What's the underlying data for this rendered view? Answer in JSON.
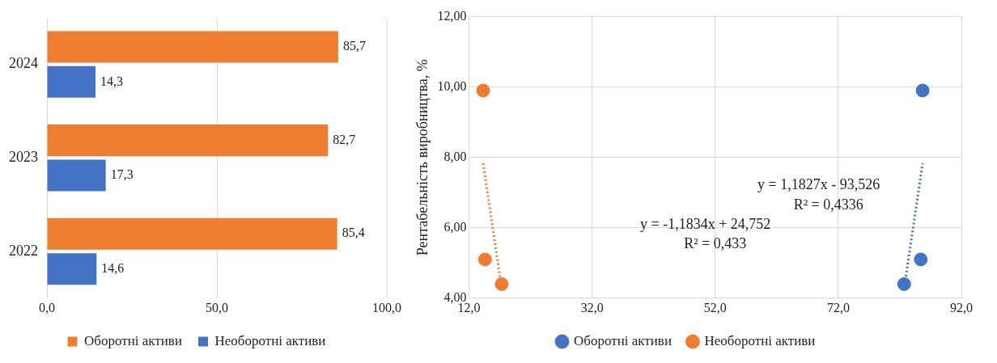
{
  "chart_data": [
    {
      "type": "bar",
      "orientation": "horizontal",
      "categories": [
        "2024",
        "2023",
        "2022"
      ],
      "series": [
        {
          "name": "Оборотні активи",
          "color": "#ed7d31",
          "values": [
            85.7,
            82.7,
            85.4
          ],
          "value_labels": [
            "85,7",
            "82,7",
            "85,4"
          ]
        },
        {
          "name": "Необоротні активи",
          "color": "#4472c4",
          "values": [
            14.3,
            17.3,
            14.6
          ],
          "value_labels": [
            "14,3",
            "17,3",
            "14,6"
          ]
        }
      ],
      "xlim": [
        0,
        100
      ],
      "xticks": [
        {
          "value": 0,
          "label": "0,0"
        },
        {
          "value": 50,
          "label": "50,0"
        },
        {
          "value": 100,
          "label": "100,0"
        }
      ],
      "grid": "x",
      "legend": "bottom"
    },
    {
      "type": "scatter",
      "ylabel": "Рентабельність виробництва, %",
      "series": [
        {
          "name": "Оборотні активи",
          "color": "#4472c4",
          "marker": "circle",
          "x": [
            85.7,
            85.4,
            82.7
          ],
          "values": [
            9.9,
            5.1,
            4.4
          ]
        },
        {
          "name": "Необоротні активи",
          "color": "#ed7d31",
          "marker": "circle",
          "x": [
            14.3,
            14.6,
            17.3
          ],
          "values": [
            9.9,
            5.1,
            4.4
          ]
        },
        {
          "type": "line",
          "color": "#4472c4",
          "line_style": "dotted",
          "x": [
            82.7,
            85.7
          ],
          "values": [
            4.28,
            7.83
          ]
        },
        {
          "type": "line",
          "color": "#ed7d31",
          "line_style": "dotted",
          "x": [
            14.3,
            17.3
          ],
          "values": [
            7.83,
            4.28
          ]
        }
      ],
      "xlim": [
        12,
        92
      ],
      "xticks": [
        {
          "value": 12,
          "label": "12,0"
        },
        {
          "value": 32,
          "label": "32,0"
        },
        {
          "value": 52,
          "label": "52,0"
        },
        {
          "value": 72,
          "label": "72,0"
        },
        {
          "value": 92,
          "label": "92,0"
        }
      ],
      "ylim": [
        4,
        12
      ],
      "yticks": [
        {
          "value": 4,
          "label": "4,00"
        },
        {
          "value": 6,
          "label": "6,00"
        },
        {
          "value": 8,
          "label": "8,00"
        },
        {
          "value": 10,
          "label": "10,00"
        },
        {
          "value": 12,
          "label": "12,00"
        }
      ],
      "grid": true,
      "legend": "bottom",
      "annotations": [
        "y = 1,1827x - 93,526",
        "R² = 0,4336",
        "y = -1,1834x + 24,752",
        "R² = 0,433"
      ]
    }
  ]
}
